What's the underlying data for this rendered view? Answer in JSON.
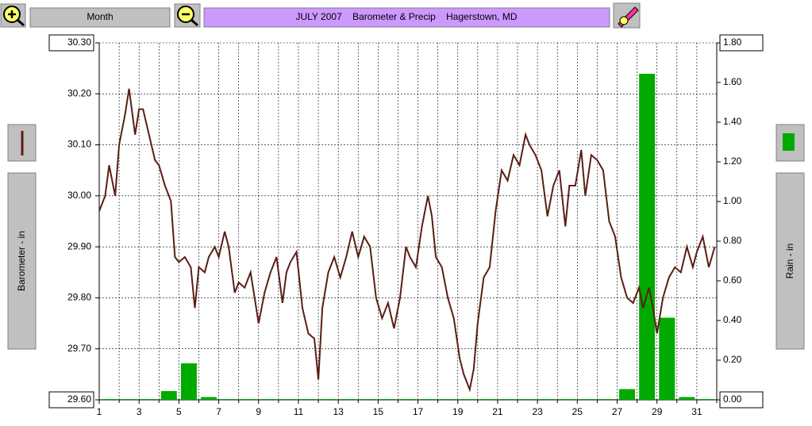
{
  "toolbar": {
    "button": "Month"
  },
  "chart_data": {
    "type": "combo",
    "title": "JULY 2007    Barometer & Precip    Hagerstown, MD",
    "ylabel": "Barometer - in",
    "y2label": "Rain - in",
    "xlim": [
      1,
      32
    ],
    "xticks": [
      1,
      3,
      5,
      7,
      9,
      11,
      13,
      15,
      17,
      19,
      21,
      23,
      25,
      27,
      29,
      31
    ],
    "xminorticks": [
      2,
      4,
      6,
      8,
      10,
      12,
      14,
      16,
      18,
      20,
      22,
      24,
      26,
      28,
      30,
      32
    ],
    "ylim": [
      29.6,
      30.3
    ],
    "yticks": [
      {
        "value": 29.6,
        "label": "29.60"
      },
      {
        "value": 29.7,
        "label": "29.70"
      },
      {
        "value": 29.8,
        "label": "29.80"
      },
      {
        "value": 29.9,
        "label": "29.90"
      },
      {
        "value": 30.0,
        "label": "30.00"
      },
      {
        "value": 30.1,
        "label": "30.10"
      },
      {
        "value": 30.2,
        "label": "30.20"
      },
      {
        "value": 30.3,
        "label": "30.30"
      }
    ],
    "y2lim": [
      0,
      1.8
    ],
    "y2ticks": [
      {
        "value": 0,
        "label": "0.00"
      },
      {
        "value": 0.2,
        "label": "0.20"
      },
      {
        "value": 0.4,
        "label": "0.40"
      },
      {
        "value": 0.6,
        "label": "0.60"
      },
      {
        "value": 0.8,
        "label": "0.80"
      },
      {
        "value": 1.0,
        "label": "1.00"
      },
      {
        "value": 1.2,
        "label": "1.20"
      },
      {
        "value": 1.4,
        "label": "1.40"
      },
      {
        "value": 1.6,
        "label": "1.60"
      },
      {
        "value": 1.8,
        "label": "1.80"
      }
    ],
    "grid": true,
    "series": [
      {
        "type": "line",
        "color": "#5a1e14",
        "x": [
          1.0,
          1.3,
          1.5,
          1.8,
          2.0,
          2.3,
          2.5,
          2.8,
          3.0,
          3.2,
          3.5,
          3.8,
          4.0,
          4.3,
          4.6,
          4.8,
          5.0,
          5.3,
          5.6,
          5.8,
          6.0,
          6.3,
          6.5,
          6.8,
          7.0,
          7.3,
          7.5,
          7.8,
          8.0,
          8.3,
          8.6,
          8.8,
          9.0,
          9.3,
          9.6,
          9.9,
          10.2,
          10.4,
          10.6,
          10.9,
          11.2,
          11.5,
          11.8,
          12.0,
          12.2,
          12.5,
          12.8,
          13.1,
          13.4,
          13.7,
          14.0,
          14.3,
          14.6,
          14.9,
          15.2,
          15.5,
          15.8,
          16.1,
          16.4,
          16.6,
          16.9,
          17.2,
          17.5,
          17.7,
          17.9,
          18.2,
          18.5,
          18.8,
          19.1,
          19.3,
          19.6,
          19.8,
          20.0,
          20.3,
          20.6,
          20.9,
          21.2,
          21.5,
          21.8,
          22.1,
          22.4,
          22.6,
          22.9,
          23.2,
          23.5,
          23.8,
          24.1,
          24.4,
          24.6,
          24.9,
          25.2,
          25.4,
          25.7,
          26.0,
          26.3,
          26.6,
          26.9,
          27.2,
          27.5,
          27.8,
          28.1,
          28.3,
          28.6,
          28.8,
          29.0,
          29.3,
          29.6,
          29.9,
          30.2,
          30.5,
          30.8,
          31.0,
          31.3,
          31.6,
          31.9
        ],
        "values": [
          29.97,
          30.0,
          30.06,
          30.0,
          30.1,
          30.16,
          30.21,
          30.12,
          30.17,
          30.17,
          30.12,
          30.07,
          30.06,
          30.02,
          29.99,
          29.88,
          29.87,
          29.88,
          29.86,
          29.78,
          29.86,
          29.85,
          29.88,
          29.9,
          29.88,
          29.93,
          29.9,
          29.81,
          29.83,
          29.82,
          29.85,
          29.8,
          29.75,
          29.81,
          29.85,
          29.88,
          29.79,
          29.85,
          29.87,
          29.89,
          29.78,
          29.73,
          29.72,
          29.64,
          29.78,
          29.85,
          29.88,
          29.84,
          29.88,
          29.93,
          29.88,
          29.92,
          29.9,
          29.8,
          29.76,
          29.79,
          29.74,
          29.8,
          29.9,
          29.88,
          29.86,
          29.94,
          30.0,
          29.96,
          29.88,
          29.86,
          29.8,
          29.76,
          29.68,
          29.65,
          29.62,
          29.66,
          29.75,
          29.84,
          29.86,
          29.97,
          30.05,
          30.03,
          30.08,
          30.06,
          30.12,
          30.1,
          30.08,
          30.05,
          29.96,
          30.02,
          30.05,
          29.94,
          30.02,
          30.02,
          30.09,
          30.0,
          30.08,
          30.07,
          30.05,
          29.95,
          29.92,
          29.84,
          29.8,
          29.79,
          29.82,
          29.78,
          29.82,
          29.78,
          29.73,
          29.8,
          29.84,
          29.86,
          29.85,
          29.9,
          29.86,
          29.89,
          29.92,
          29.86,
          29.9
        ]
      },
      {
        "type": "bar",
        "axis": "y2",
        "color": "#00aa00",
        "x": [
          1,
          2,
          3,
          4,
          5,
          6,
          7,
          8,
          9,
          10,
          11,
          12,
          13,
          14,
          15,
          16,
          17,
          18,
          19,
          20,
          21,
          22,
          23,
          24,
          25,
          26,
          27,
          28,
          29,
          30,
          31
        ],
        "values": [
          0,
          0,
          0,
          0.04,
          0.18,
          0.01,
          0,
          0,
          0,
          0,
          0,
          0,
          0,
          0,
          0,
          0,
          0,
          0,
          0,
          0,
          0,
          0,
          0,
          0,
          0,
          0,
          0.05,
          1.64,
          0.41,
          0.01,
          0
        ]
      }
    ]
  }
}
